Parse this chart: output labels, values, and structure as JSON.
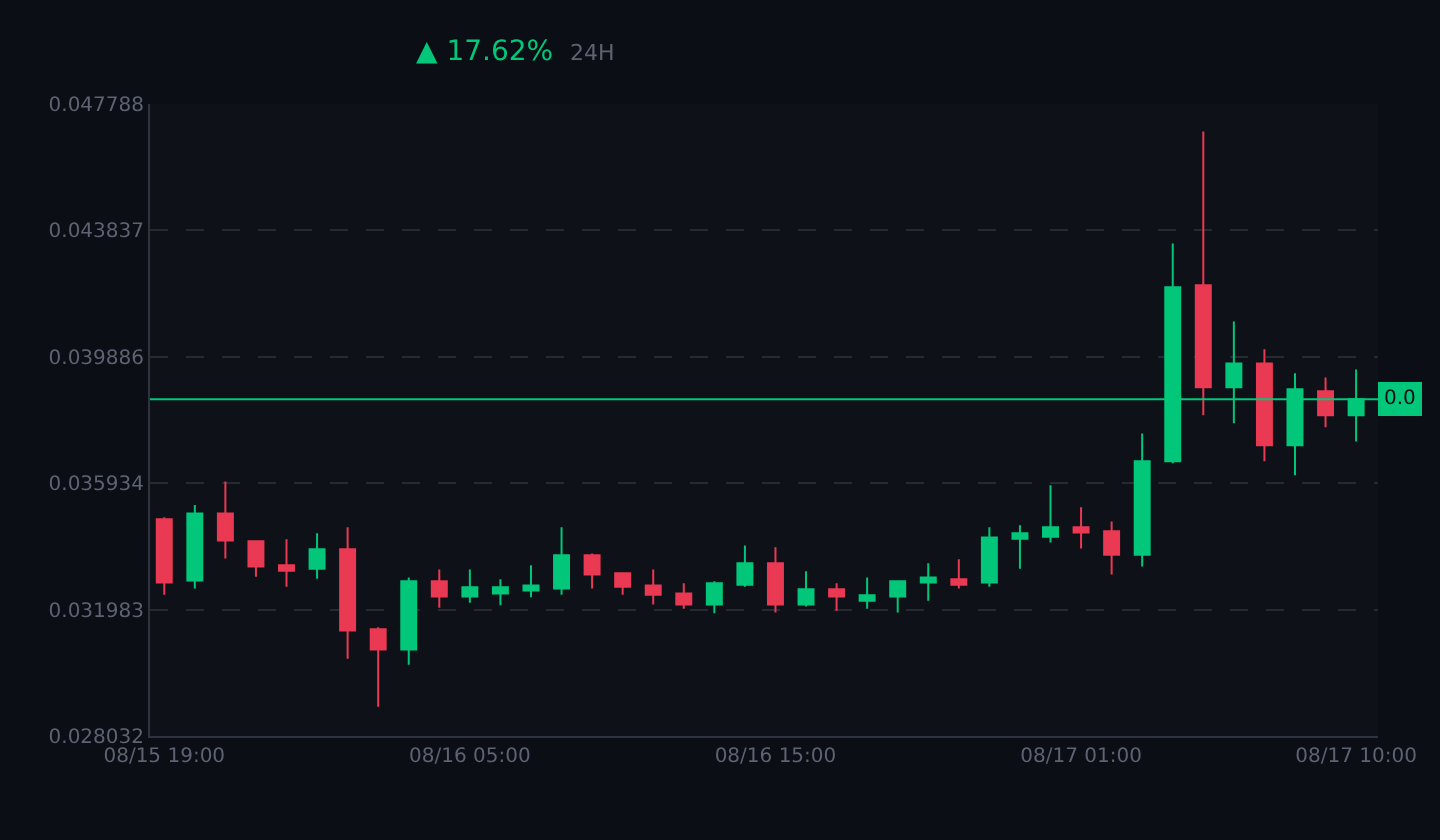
{
  "chart_data": {
    "type": "candlestick",
    "annotations": [
      "▲ 17.62%",
      "24H"
    ],
    "x": [
      "--08-15T19:00",
      "--08-15T20:00",
      "--08-15T21:00",
      "--08-15T22:00",
      "--08-15T23:00",
      "--08-16T00:00",
      "--08-16T01:00",
      "--08-16T02:00",
      "--08-16T03:00",
      "--08-16T04:00",
      "--08-16T05:00",
      "--08-16T06:00",
      "--08-16T07:00",
      "--08-16T08:00",
      "--08-16T09:00",
      "--08-16T10:00",
      "--08-16T11:00",
      "--08-16T12:00",
      "--08-16T13:00",
      "--08-16T14:00",
      "--08-16T15:00",
      "--08-16T16:00",
      "--08-16T17:00",
      "--08-16T18:00",
      "--08-16T19:00",
      "--08-16T20:00",
      "--08-16T21:00",
      "--08-16T22:00",
      "--08-16T23:00",
      "--08-17T00:00",
      "--08-17T01:00",
      "--08-17T02:00",
      "--08-17T03:00",
      "--08-17T04:00",
      "--08-17T05:00",
      "--08-17T06:00",
      "--08-17T07:00",
      "--08-17T08:00",
      "--08-17T09:00",
      "--08-17T10:00"
    ],
    "ohlc": [
      [
        0.03481,
        0.03487,
        0.03245,
        0.03283
      ],
      [
        0.03289,
        0.03525,
        0.03264,
        0.03499
      ],
      [
        0.03499,
        0.03599,
        0.03358,
        0.03414
      ],
      [
        0.03412,
        0.03412,
        0.03301,
        0.03333
      ],
      [
        0.03337,
        0.03418,
        0.0327,
        0.0332
      ],
      [
        0.03326,
        0.03437,
        0.03295,
        0.03387
      ],
      [
        0.03387,
        0.03456,
        0.03045,
        0.03133
      ],
      [
        0.03137,
        0.03143,
        0.02895,
        0.03074
      ],
      [
        0.03074,
        0.03299,
        0.03026,
        0.03287
      ],
      [
        0.03287,
        0.03324,
        0.03204,
        0.03239
      ],
      [
        0.03239,
        0.03324,
        0.0322,
        0.03268
      ],
      [
        0.03249,
        0.03293,
        0.03212,
        0.03268
      ],
      [
        0.03258,
        0.03337,
        0.03237,
        0.03274
      ],
      [
        0.03264,
        0.03456,
        0.03245,
        0.03368
      ],
      [
        0.03368,
        0.03374,
        0.03264,
        0.03308
      ],
      [
        0.03312,
        0.03312,
        0.03245,
        0.0327
      ],
      [
        0.03274,
        0.03324,
        0.03214,
        0.03245
      ],
      [
        0.03249,
        0.03281,
        0.03201,
        0.03214
      ],
      [
        0.03214,
        0.03287,
        0.03187,
        0.03281
      ],
      [
        0.03276,
        0.03399,
        0.0327,
        0.03343
      ],
      [
        0.03343,
        0.03393,
        0.03189,
        0.03214
      ],
      [
        0.03214,
        0.03318,
        0.03208,
        0.03262
      ],
      [
        0.03262,
        0.03281,
        0.03195,
        0.03239
      ],
      [
        0.03226,
        0.03299,
        0.03201,
        0.03243
      ],
      [
        0.03239,
        0.03287,
        0.03189,
        0.03287
      ],
      [
        0.03283,
        0.03343,
        0.03226,
        0.03299
      ],
      [
        0.03293,
        0.03356,
        0.03264,
        0.03276
      ],
      [
        0.03283,
        0.03456,
        0.0327,
        0.03424
      ],
      [
        0.0342,
        0.03462,
        0.03326,
        0.03437
      ],
      [
        0.03426,
        0.03587,
        0.03408,
        0.03456
      ],
      [
        0.03456,
        0.03518,
        0.03389,
        0.03439
      ],
      [
        0.03443,
        0.03474,
        0.03308,
        0.0337
      ],
      [
        0.0337,
        0.03749,
        0.03333,
        0.03662
      ],
      [
        0.03662,
        0.04343,
        0.03656,
        0.04206
      ],
      [
        0.04212,
        0.04693,
        0.03806,
        0.03893
      ],
      [
        0.03893,
        0.04099,
        0.03781,
        0.03968
      ],
      [
        0.03968,
        0.04012,
        0.03662,
        0.03712
      ],
      [
        0.03712,
        0.03937,
        0.03618,
        0.03887
      ],
      [
        0.03881,
        0.03924,
        0.03768,
        0.03806
      ],
      [
        0.03806,
        0.03949,
        0.03724,
        0.03856
      ]
    ],
    "colors": [
      "#ea3953",
      "#02c77a",
      "#ea3953",
      "#ea3953",
      "#ea3953",
      "#02c77a",
      "#ea3953",
      "#ea3953",
      "#02c77a",
      "#ea3953",
      "#02c77a",
      "#02c77a",
      "#02c77a",
      "#02c77a",
      "#ea3953",
      "#ea3953",
      "#ea3953",
      "#ea3953",
      "#02c77a",
      "#02c77a",
      "#ea3953",
      "#02c77a",
      "#ea3953",
      "#02c77a",
      "#02c77a",
      "#02c77a",
      "#ea3953",
      "#02c77a",
      "#02c77a",
      "#02c77a",
      "#ea3953",
      "#ea3953",
      "#02c77a",
      "#02c77a",
      "#ea3953",
      "#02c77a",
      "#ea3953",
      "#02c77a",
      "#ea3953",
      "#02c77a"
    ],
    "xlim": [
      "--08-15T18:32",
      "--08-17T10:43"
    ],
    "xticks": [
      {
        "value": "--08-15T19:00",
        "label": "08/15 19:00"
      },
      {
        "value": "--08-16T05:00",
        "label": "08/16 05:00"
      },
      {
        "value": "--08-16T15:00",
        "label": "08/16 15:00"
      },
      {
        "value": "--08-17T01:00",
        "label": "08/17 01:00"
      },
      {
        "value": "--08-17T10:00",
        "label": "08/17 10:00"
      }
    ],
    "ylim": [
      0.028032,
      0.047788
    ],
    "yticks": [
      0.028032,
      0.031983,
      0.035934,
      0.039886,
      0.043837,
      0.047788
    ],
    "ref_lines": [
      {
        "axis": "y",
        "value": 0.03856,
        "label": "0.0",
        "color": "#02c77a"
      }
    ],
    "grid": "y"
  }
}
